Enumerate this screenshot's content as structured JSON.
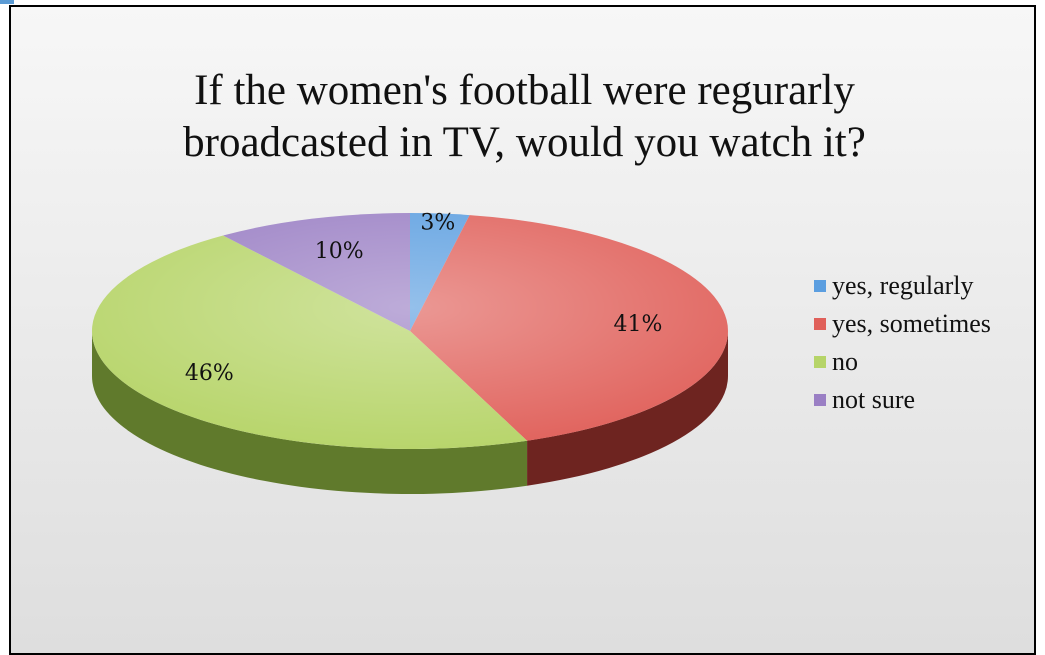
{
  "chart_data": {
    "type": "pie",
    "title_lines": [
      "If the women's football were regurarly",
      "broadcasted in TV, would you watch it?"
    ],
    "categories": [
      "yes, regularly",
      "yes, sometimes",
      "no",
      "not sure"
    ],
    "values": [
      3,
      41,
      46,
      10
    ],
    "data_labels": [
      "3%",
      "41%",
      "46%",
      "10%"
    ],
    "colors": [
      "#5b9ee0",
      "#e0605a",
      "#b6d468",
      "#9a7fc4"
    ],
    "side_colors": [
      "#3f6fa8",
      "#6e2420",
      "#607a2c",
      "#5d4880"
    ],
    "style": "3d",
    "legend_position": "right"
  }
}
